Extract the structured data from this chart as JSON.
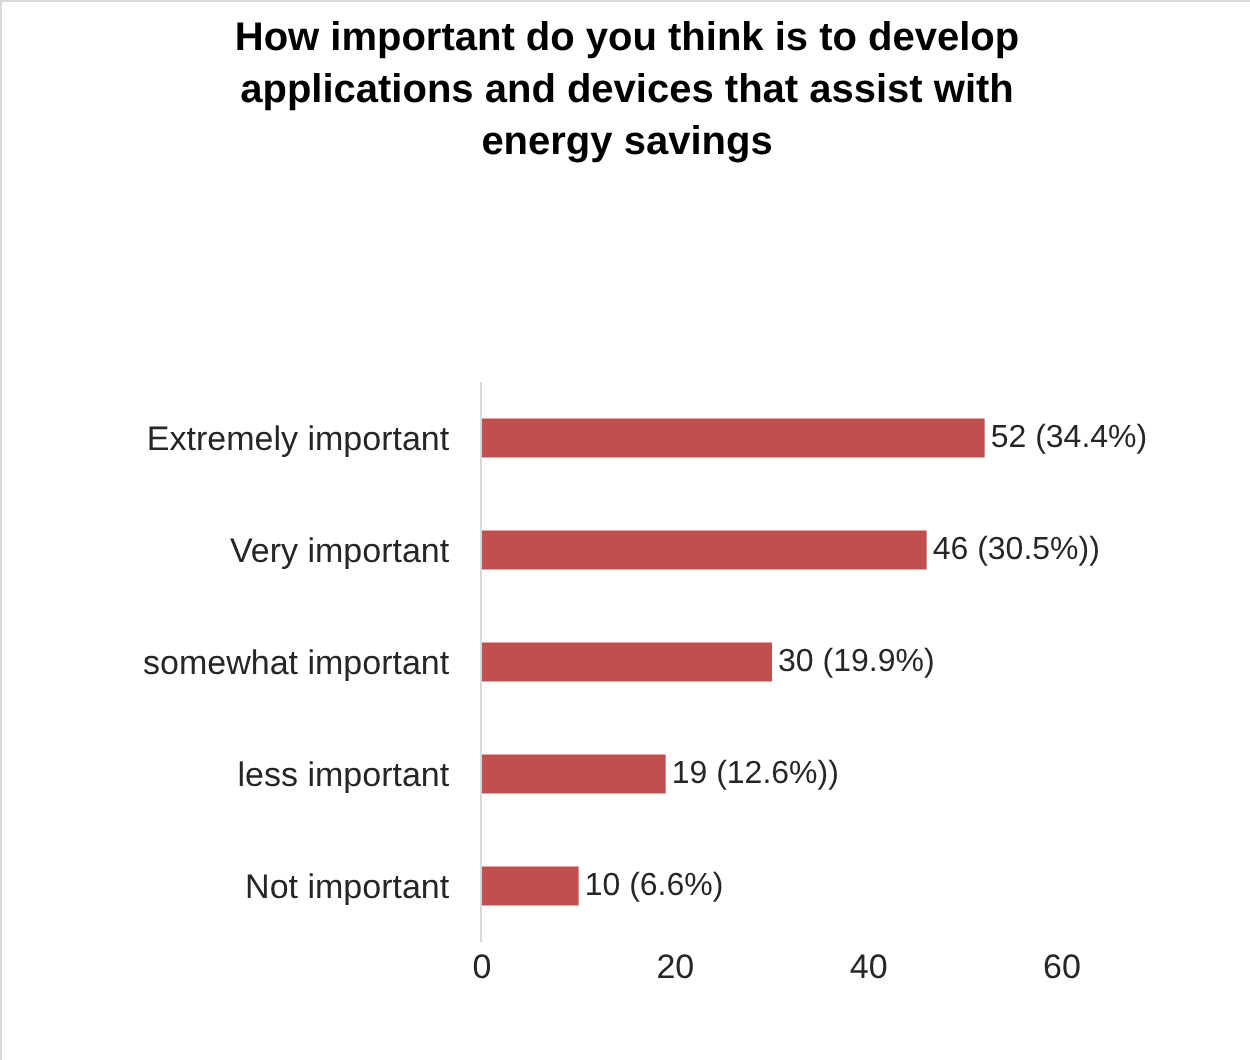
{
  "chart_data": {
    "type": "bar",
    "orientation": "horizontal",
    "title": "How important do you think is to develop applications and devices that assist with energy savings",
    "categories": [
      "Extremely important",
      "Very important",
      "somewhat important",
      "less important",
      "Not important"
    ],
    "values": [
      52,
      46,
      30,
      19,
      10
    ],
    "value_labels": [
      "52 (34.4%)",
      "46 (30.5%))",
      "30 (19.9%)",
      "19 (12.6%))",
      "10 (6.6%)"
    ],
    "color": "#c0504d",
    "xlim": [
      0,
      60
    ],
    "xticks": [
      0,
      20,
      40,
      60
    ],
    "grid": false,
    "legend": false
  }
}
